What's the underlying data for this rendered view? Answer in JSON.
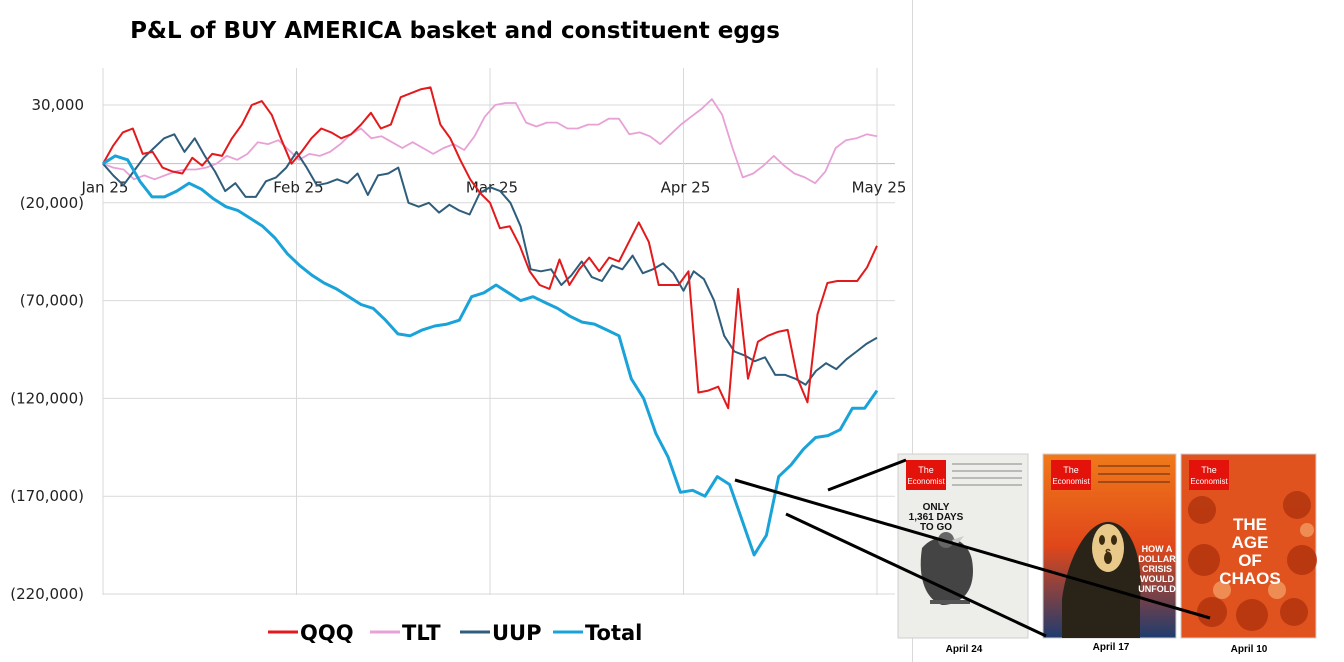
{
  "chart_data": {
    "type": "line",
    "title": "P&L of BUY AMERICA basket and constituent eggs",
    "xlabel": "",
    "ylabel": "",
    "x_ticks": [
      "Jan 25",
      "Feb 25",
      "Mar 25",
      "Apr 25",
      "May 25"
    ],
    "y_ticks": [
      "30,000",
      "(20,000)",
      "(70,000)",
      "(120,000)",
      "(170,000)",
      "(220,000)"
    ],
    "y_tick_values": [
      30000,
      -20000,
      -70000,
      -120000,
      -170000,
      -220000
    ],
    "ylim": [
      -220000,
      50000
    ],
    "legend_position": "bottom",
    "grid": "horizontal",
    "series": [
      {
        "name": "QQQ",
        "color": "#e31a1c",
        "values": [
          0,
          9000,
          16000,
          18000,
          5000,
          6000,
          -2000,
          -4000,
          -5000,
          3000,
          -1000,
          5000,
          4000,
          13000,
          20000,
          30000,
          32000,
          25000,
          12000,
          0,
          6000,
          13000,
          18000,
          16000,
          13000,
          15000,
          20000,
          26000,
          18000,
          20000,
          34000,
          36000,
          38000,
          39000,
          20000,
          13000,
          2000,
          -8000,
          -15000,
          -20000,
          -33000,
          -32000,
          -42000,
          -55000,
          -62000,
          -64000,
          -49000,
          -62000,
          -54000,
          -48000,
          -55000,
          -48000,
          -50000,
          -40000,
          -30000,
          -40000,
          -62000,
          -62000,
          -62000,
          -55000,
          -117000,
          -116000,
          -114000,
          -125000,
          -64000,
          -110000,
          -91000,
          -88000,
          -86000,
          -85000,
          -110000,
          -122000,
          -77000,
          -61000,
          -60000,
          -60000,
          -60000,
          -53000,
          -42000
        ]
      },
      {
        "name": "TLT",
        "color": "#e8a1d6",
        "values": [
          0,
          -2000,
          -3000,
          -8000,
          -6000,
          -8000,
          -6000,
          -4000,
          -3000,
          -3000,
          -2000,
          0,
          4000,
          2000,
          5000,
          11000,
          10000,
          12000,
          7000,
          2000,
          5000,
          4000,
          6000,
          10000,
          15000,
          18000,
          13000,
          14000,
          11000,
          8000,
          11000,
          8000,
          5000,
          8000,
          10000,
          7000,
          14000,
          24000,
          30000,
          31000,
          31000,
          21000,
          19000,
          21000,
          21000,
          18000,
          18000,
          20000,
          20000,
          23000,
          23000,
          15000,
          16000,
          14000,
          10000,
          15000,
          20000,
          24000,
          28000,
          33000,
          25000,
          8000,
          -7000,
          -5000,
          -1000,
          4000,
          -1000,
          -5000,
          -7000,
          -10000,
          -4000,
          8000,
          12000,
          13000,
          15000,
          14000
        ]
      },
      {
        "name": "UUP",
        "color": "#2f5d7c",
        "values": [
          0,
          -6000,
          -11000,
          -4000,
          3000,
          8000,
          13000,
          15000,
          6000,
          13000,
          4000,
          -4000,
          -14000,
          -10000,
          -17000,
          -17000,
          -9000,
          -7000,
          -2000,
          6000,
          -2000,
          -11000,
          -10000,
          -8000,
          -10000,
          -5000,
          -16000,
          -6000,
          -5000,
          -2000,
          -20000,
          -22000,
          -20000,
          -25000,
          -21000,
          -24000,
          -26000,
          -15000,
          -12000,
          -14000,
          -20000,
          -32000,
          -54000,
          -55000,
          -54000,
          -62000,
          -57000,
          -50000,
          -58000,
          -60000,
          -52000,
          -54000,
          -47000,
          -56000,
          -54000,
          -51000,
          -56000,
          -65000,
          -55000,
          -59000,
          -70000,
          -88000,
          -96000,
          -98000,
          -101000,
          -99000,
          -108000,
          -108000,
          -110000,
          -113000,
          -106000,
          -102000,
          -105000,
          -100000,
          -96000,
          -92000,
          -89000
        ]
      },
      {
        "name": "Total",
        "color": "#1aa3d9",
        "values": [
          0,
          4000,
          2000,
          -9000,
          -17000,
          -17000,
          -14000,
          -10000,
          -13000,
          -18000,
          -22000,
          -24000,
          -28000,
          -32000,
          -38000,
          -46000,
          -52000,
          -57000,
          -61000,
          -64000,
          -68000,
          -72000,
          -74000,
          -80000,
          -87000,
          -88000,
          -85000,
          -83000,
          -82000,
          -80000,
          -68000,
          -66000,
          -62000,
          -66000,
          -70000,
          -68000,
          -71000,
          -74000,
          -78000,
          -81000,
          -82000,
          -85000,
          -88000,
          -110000,
          -120000,
          -138000,
          -150000,
          -168000,
          -167000,
          -170000,
          -160000,
          -164000,
          -182000,
          -200000,
          -190000,
          -160000,
          -154000,
          -146000,
          -140000,
          -139000,
          -136000,
          -125000,
          -125000,
          -116000
        ]
      }
    ]
  },
  "covers": [
    {
      "masthead": "The Economist",
      "headline": "ONLY 1,361 DAYS TO GO",
      "date_label": "April 24"
    },
    {
      "masthead": "The Economist",
      "headline": "HOW A DOLLAR CRISIS WOULD UNFOLD",
      "date_label": "April 17"
    },
    {
      "masthead": "The Economist",
      "headline": "THE AGE OF CHAOS",
      "date_label": "April 10"
    }
  ]
}
